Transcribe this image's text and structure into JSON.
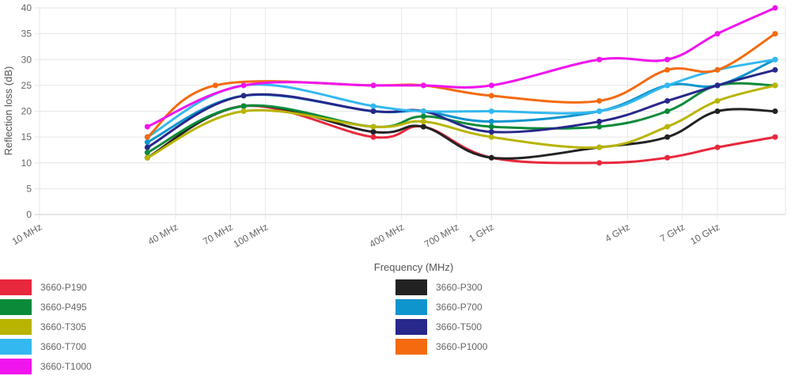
{
  "chart_data": {
    "type": "line",
    "xlabel": "Frequency (MHz)",
    "ylabel": "Reflection loss (dB)",
    "x_scale": "log",
    "xlim": [
      10,
      20000
    ],
    "ylim": [
      0,
      40
    ],
    "y_ticks": [
      0,
      5,
      10,
      15,
      20,
      25,
      30,
      35,
      40
    ],
    "x_ticks": [
      {
        "value": 10,
        "label": "10 MHz"
      },
      {
        "value": 40,
        "label": "40 MHz"
      },
      {
        "value": 70,
        "label": "70 MHz"
      },
      {
        "value": 100,
        "label": "100 MHz"
      },
      {
        "value": 400,
        "label": "400 MHz"
      },
      {
        "value": 700,
        "label": "700 MHz"
      },
      {
        "value": 1000,
        "label": "1 GHz"
      },
      {
        "value": 4000,
        "label": "4 GHz"
      },
      {
        "value": 7000,
        "label": "7 GHz"
      },
      {
        "value": 10000,
        "label": "10 GHz"
      }
    ],
    "grid": true,
    "legend_position": "bottom",
    "series": [
      {
        "name": "3660-P190",
        "color": "#e8283c",
        "points": [
          [
            30,
            11
          ],
          [
            80,
            21
          ],
          [
            300,
            15
          ],
          [
            500,
            17
          ],
          [
            1000,
            11
          ],
          [
            3000,
            10
          ],
          [
            6000,
            11
          ],
          [
            10000,
            13
          ],
          [
            18000,
            15
          ]
        ]
      },
      {
        "name": "3660-P300",
        "color": "#222222",
        "points": [
          [
            30,
            11
          ],
          [
            80,
            21
          ],
          [
            300,
            16
          ],
          [
            500,
            17
          ],
          [
            1000,
            11
          ],
          [
            3000,
            13
          ],
          [
            6000,
            15
          ],
          [
            10000,
            20
          ],
          [
            18000,
            20
          ]
        ]
      },
      {
        "name": "3660-P495",
        "color": "#0b8a3a",
        "points": [
          [
            30,
            12
          ],
          [
            80,
            21
          ],
          [
            300,
            17
          ],
          [
            500,
            19
          ],
          [
            1000,
            17
          ],
          [
            3000,
            17
          ],
          [
            6000,
            20
          ],
          [
            10000,
            25
          ],
          [
            18000,
            25
          ]
        ]
      },
      {
        "name": "3660-P700",
        "color": "#0e95ce",
        "points": [
          [
            30,
            14
          ],
          [
            80,
            23
          ],
          [
            300,
            20
          ],
          [
            500,
            20
          ],
          [
            1000,
            18
          ],
          [
            3000,
            20
          ],
          [
            6000,
            25
          ],
          [
            10000,
            25
          ],
          [
            18000,
            30
          ]
        ]
      },
      {
        "name": "3660-T305",
        "color": "#b8b400",
        "points": [
          [
            30,
            11
          ],
          [
            80,
            20
          ],
          [
            300,
            17
          ],
          [
            500,
            18
          ],
          [
            1000,
            15
          ],
          [
            3000,
            13
          ],
          [
            6000,
            17
          ],
          [
            10000,
            22
          ],
          [
            18000,
            25
          ]
        ]
      },
      {
        "name": "3660-T500",
        "color": "#27288a",
        "points": [
          [
            30,
            13
          ],
          [
            80,
            23
          ],
          [
            300,
            20
          ],
          [
            500,
            20
          ],
          [
            1000,
            16
          ],
          [
            3000,
            18
          ],
          [
            6000,
            22
          ],
          [
            10000,
            25
          ],
          [
            18000,
            28
          ]
        ]
      },
      {
        "name": "3660-T700",
        "color": "#33b8ef",
        "points": [
          [
            30,
            15
          ],
          [
            80,
            25
          ],
          [
            300,
            21
          ],
          [
            500,
            20
          ],
          [
            1000,
            20
          ],
          [
            3000,
            20
          ],
          [
            6000,
            25
          ],
          [
            10000,
            28
          ],
          [
            18000,
            30
          ]
        ]
      },
      {
        "name": "3660-P1000",
        "color": "#f46a0e",
        "points": [
          [
            30,
            15
          ],
          [
            60,
            25
          ],
          [
            300,
            25
          ],
          [
            500,
            25
          ],
          [
            1000,
            23
          ],
          [
            3000,
            22
          ],
          [
            6000,
            28
          ],
          [
            10000,
            28
          ],
          [
            18000,
            35
          ]
        ]
      },
      {
        "name": "3660-T1000",
        "color": "#f014ee",
        "points": [
          [
            30,
            17
          ],
          [
            80,
            25
          ],
          [
            300,
            25
          ],
          [
            500,
            25
          ],
          [
            1000,
            25
          ],
          [
            3000,
            30
          ],
          [
            6000,
            30
          ],
          [
            10000,
            35
          ],
          [
            18000,
            40
          ]
        ]
      }
    ]
  }
}
